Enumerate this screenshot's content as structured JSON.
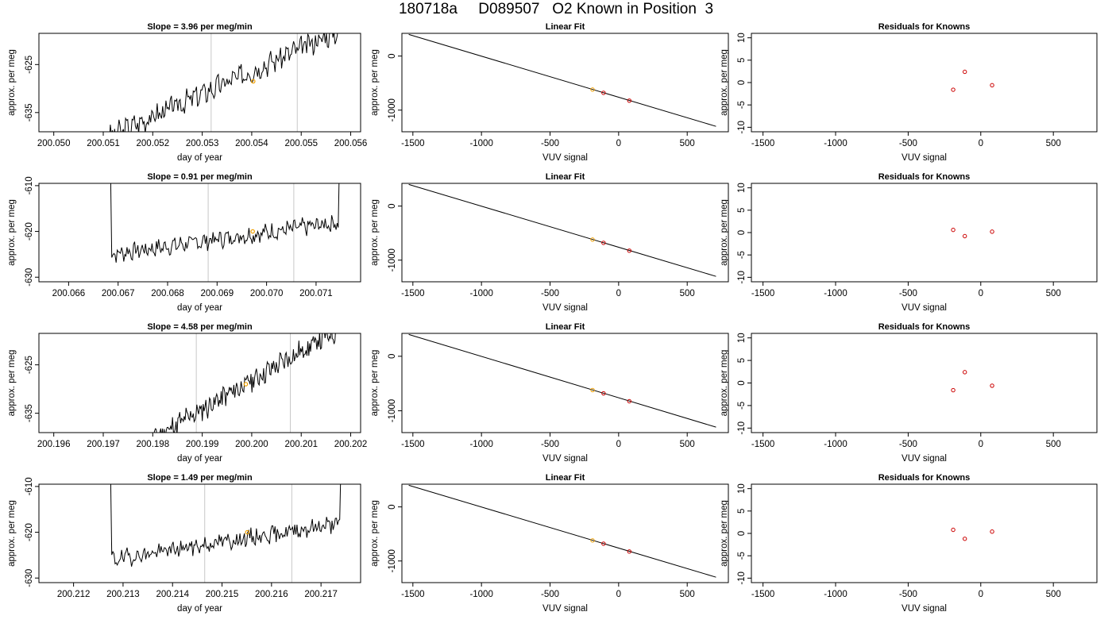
{
  "header": {
    "title": "180718a     D089507   O2 Known in Position  3"
  },
  "chart_data": [
    {
      "type": "line",
      "title": "Slope =  3.96  per meg/min",
      "xlabel": "day of year",
      "ylabel": "approx. per meg",
      "xlim": [
        200.0497,
        200.0562
      ],
      "ylim": [
        -639,
        -618.5
      ],
      "xticks": [
        "200.050",
        "200.051",
        "200.052",
        "200.053",
        "200.054",
        "200.055",
        "200.056"
      ],
      "xtick_values": [
        200.05,
        200.051,
        200.052,
        200.053,
        200.054,
        200.055,
        200.056
      ],
      "yticks": [
        "-625",
        "-635"
      ],
      "ytick_values": [
        -625,
        -635
      ],
      "vlines": [
        200.05318,
        200.05492
      ],
      "trace": {
        "x_start": 200.05112,
        "x_end": 200.05575,
        "start": -640,
        "end": -618,
        "noise": 2.0,
        "seed": 3
      },
      "marker": {
        "x": 200.05403,
        "y": -628.5,
        "color": "#f0a000"
      }
    },
    {
      "type": "line",
      "title": "Linear Fit",
      "xlabel": "VUV signal",
      "ylabel": "approx. per meg",
      "xlim": [
        -1580,
        800
      ],
      "ylim": [
        -1400,
        420
      ],
      "xticks": [
        "-1500",
        "-1000",
        "-500",
        "0",
        "500"
      ],
      "xtick_values": [
        -1500,
        -1000,
        -500,
        0,
        500
      ],
      "yticks": [
        "0",
        "-1000"
      ],
      "ytick_values": [
        0,
        -1000
      ],
      "fit_line": {
        "x": [
          -1530,
          710
        ],
        "y": [
          400,
          -1300
        ]
      },
      "points": [
        {
          "x": -190,
          "y": -620,
          "color": "#f0a000"
        },
        {
          "x": -110,
          "y": -680,
          "color": "#cc0000"
        },
        {
          "x": 78,
          "y": -825,
          "color": "#cc0000"
        }
      ]
    },
    {
      "type": "scatter",
      "title": "Residuals for Knowns",
      "xlabel": "VUV signal",
      "ylabel": "approx. per meg",
      "xlim": [
        -1580,
        800
      ],
      "ylim": [
        -11,
        11
      ],
      "xticks": [
        "-1500",
        "-1000",
        "-500",
        "0",
        "500"
      ],
      "xtick_values": [
        -1500,
        -1000,
        -500,
        0,
        500
      ],
      "yticks": [
        "-10",
        "-5",
        "0",
        "5",
        "10"
      ],
      "ytick_values": [
        -10,
        -5,
        0,
        5,
        10
      ],
      "points": [
        {
          "x": -190,
          "y": -1.6,
          "color": "#cc0000"
        },
        {
          "x": -110,
          "y": 2.4,
          "color": "#cc0000"
        },
        {
          "x": 78,
          "y": -0.6,
          "color": "#cc0000"
        }
      ]
    },
    {
      "type": "line",
      "title": "Slope =  0.91  per meg/min",
      "xlabel": "day of year",
      "ylabel": "approx. per meg",
      "xlim": [
        200.0654,
        200.0719
      ],
      "ylim": [
        -631,
        -609.5
      ],
      "xticks": [
        "200.066",
        "200.067",
        "200.068",
        "200.069",
        "200.070",
        "200.071"
      ],
      "xtick_values": [
        200.066,
        200.067,
        200.068,
        200.069,
        200.07,
        200.071
      ],
      "yticks": [
        "-610",
        "-620",
        "-630"
      ],
      "ytick_values": [
        -610,
        -620,
        -630
      ],
      "vlines": [
        200.06882,
        200.07055
      ],
      "trace": {
        "x_start": 200.06685,
        "x_end": 200.07147,
        "start": -625,
        "end": -618,
        "noise": 1.6,
        "seed": 7,
        "spike_start": -608,
        "spike_end": -606
      },
      "marker": {
        "x": 200.06972,
        "y": -620.0,
        "color": "#f0a000"
      }
    },
    {
      "type": "line",
      "title": "Linear Fit",
      "xlabel": "VUV signal",
      "ylabel": "approx. per meg",
      "xlim": [
        -1580,
        800
      ],
      "ylim": [
        -1400,
        420
      ],
      "xticks": [
        "-1500",
        "-1000",
        "-500",
        "0",
        "500"
      ],
      "xtick_values": [
        -1500,
        -1000,
        -500,
        0,
        500
      ],
      "yticks": [
        "0",
        "-1000"
      ],
      "ytick_values": [
        0,
        -1000
      ],
      "fit_line": {
        "x": [
          -1530,
          710
        ],
        "y": [
          400,
          -1300
        ]
      },
      "points": [
        {
          "x": -190,
          "y": -620,
          "color": "#f0a000"
        },
        {
          "x": -110,
          "y": -680,
          "color": "#cc0000"
        },
        {
          "x": 78,
          "y": -825,
          "color": "#cc0000"
        }
      ]
    },
    {
      "type": "scatter",
      "title": "Residuals for Knowns",
      "xlabel": "VUV signal",
      "ylabel": "approx. per meg",
      "xlim": [
        -1580,
        800
      ],
      "ylim": [
        -11,
        11
      ],
      "xticks": [
        "-1500",
        "-1000",
        "-500",
        "0",
        "500"
      ],
      "xtick_values": [
        -1500,
        -1000,
        -500,
        0,
        500
      ],
      "yticks": [
        "-10",
        "-5",
        "0",
        "5",
        "10"
      ],
      "ytick_values": [
        -10,
        -5,
        0,
        5,
        10
      ],
      "points": [
        {
          "x": -190,
          "y": 0.6,
          "color": "#cc0000"
        },
        {
          "x": -110,
          "y": -0.8,
          "color": "#cc0000"
        },
        {
          "x": 78,
          "y": 0.2,
          "color": "#cc0000"
        }
      ]
    },
    {
      "type": "line",
      "title": "Slope =  4.58  per meg/min",
      "xlabel": "day of year",
      "ylabel": "approx. per meg",
      "xlim": [
        200.1957,
        200.2022
      ],
      "ylim": [
        -639,
        -618.5
      ],
      "xticks": [
        "200.196",
        "200.197",
        "200.198",
        "200.199",
        "200.200",
        "200.201",
        "200.202"
      ],
      "xtick_values": [
        200.196,
        200.197,
        200.198,
        200.199,
        200.2,
        200.201,
        200.202
      ],
      "yticks": [
        "-625",
        "-635"
      ],
      "ytick_values": [
        -625,
        -635
      ],
      "vlines": [
        200.19888,
        200.20078
      ],
      "trace": {
        "x_start": 200.19787,
        "x_end": 200.2017,
        "start": -641,
        "end": -618,
        "noise": 2.0,
        "seed": 11
      },
      "marker": {
        "x": 200.19988,
        "y": -629.0,
        "color": "#f0a000"
      }
    },
    {
      "type": "line",
      "title": "Linear Fit",
      "xlabel": "VUV signal",
      "ylabel": "approx. per meg",
      "xlim": [
        -1580,
        800
      ],
      "ylim": [
        -1400,
        420
      ],
      "xticks": [
        "-1500",
        "-1000",
        "-500",
        "0",
        "500"
      ],
      "xtick_values": [
        -1500,
        -1000,
        -500,
        0,
        500
      ],
      "yticks": [
        "0",
        "-1000"
      ],
      "ytick_values": [
        0,
        -1000
      ],
      "fit_line": {
        "x": [
          -1530,
          710
        ],
        "y": [
          400,
          -1300
        ]
      },
      "points": [
        {
          "x": -190,
          "y": -620,
          "color": "#f0a000"
        },
        {
          "x": -110,
          "y": -680,
          "color": "#cc0000"
        },
        {
          "x": 78,
          "y": -825,
          "color": "#cc0000"
        }
      ]
    },
    {
      "type": "scatter",
      "title": "Residuals for Knowns",
      "xlabel": "VUV signal",
      "ylabel": "approx. per meg",
      "xlim": [
        -1580,
        800
      ],
      "ylim": [
        -11,
        11
      ],
      "xticks": [
        "-1500",
        "-1000",
        "-500",
        "0",
        "500"
      ],
      "xtick_values": [
        -1500,
        -1000,
        -500,
        0,
        500
      ],
      "yticks": [
        "-10",
        "-5",
        "0",
        "5",
        "10"
      ],
      "ytick_values": [
        -10,
        -5,
        0,
        5,
        10
      ],
      "points": [
        {
          "x": -190,
          "y": -1.6,
          "color": "#cc0000"
        },
        {
          "x": -110,
          "y": 2.4,
          "color": "#cc0000"
        },
        {
          "x": 78,
          "y": -0.6,
          "color": "#cc0000"
        }
      ]
    },
    {
      "type": "line",
      "title": "Slope =  1.49  per meg/min",
      "xlabel": "day of year",
      "ylabel": "approx. per meg",
      "xlim": [
        200.2113,
        200.2178
      ],
      "ylim": [
        -631,
        -609.5
      ],
      "xticks": [
        "200.212",
        "200.213",
        "200.214",
        "200.215",
        "200.216",
        "200.217"
      ],
      "xtick_values": [
        200.212,
        200.213,
        200.214,
        200.215,
        200.216,
        200.217
      ],
      "yticks": [
        "-610",
        "-620",
        "-630"
      ],
      "ytick_values": [
        -610,
        -620,
        -630
      ],
      "vlines": [
        200.21465,
        200.21641
      ],
      "trace": {
        "x_start": 200.21275,
        "x_end": 200.2174,
        "start": -626,
        "end": -618,
        "noise": 1.6,
        "seed": 19,
        "spike_start": -608,
        "spike_end": -606
      },
      "marker": {
        "x": 200.21551,
        "y": -620.0,
        "color": "#f0a000"
      }
    },
    {
      "type": "line",
      "title": "Linear Fit",
      "xlabel": "VUV signal",
      "ylabel": "approx. per meg",
      "xlim": [
        -1580,
        800
      ],
      "ylim": [
        -1400,
        420
      ],
      "xticks": [
        "-1500",
        "-1000",
        "-500",
        "0",
        "500"
      ],
      "xtick_values": [
        -1500,
        -1000,
        -500,
        0,
        500
      ],
      "yticks": [
        "0",
        "-1000"
      ],
      "ytick_values": [
        0,
        -1000
      ],
      "fit_line": {
        "x": [
          -1530,
          710
        ],
        "y": [
          400,
          -1300
        ]
      },
      "points": [
        {
          "x": -190,
          "y": -620,
          "color": "#f0a000"
        },
        {
          "x": -110,
          "y": -680,
          "color": "#cc0000"
        },
        {
          "x": 78,
          "y": -825,
          "color": "#cc0000"
        }
      ]
    },
    {
      "type": "scatter",
      "title": "Residuals for Knowns",
      "xlabel": "VUV signal",
      "ylabel": "approx. per meg",
      "xlim": [
        -1580,
        800
      ],
      "ylim": [
        -11,
        11
      ],
      "xticks": [
        "-1500",
        "-1000",
        "-500",
        "0",
        "500"
      ],
      "xtick_values": [
        -1500,
        -1000,
        -500,
        0,
        500
      ],
      "yticks": [
        "-10",
        "-5",
        "0",
        "5",
        "10"
      ],
      "ytick_values": [
        -10,
        -5,
        0,
        5,
        10
      ],
      "points": [
        {
          "x": -190,
          "y": 0.8,
          "color": "#cc0000"
        },
        {
          "x": -110,
          "y": -1.2,
          "color": "#cc0000"
        },
        {
          "x": 78,
          "y": 0.4,
          "color": "#cc0000"
        }
      ]
    }
  ]
}
